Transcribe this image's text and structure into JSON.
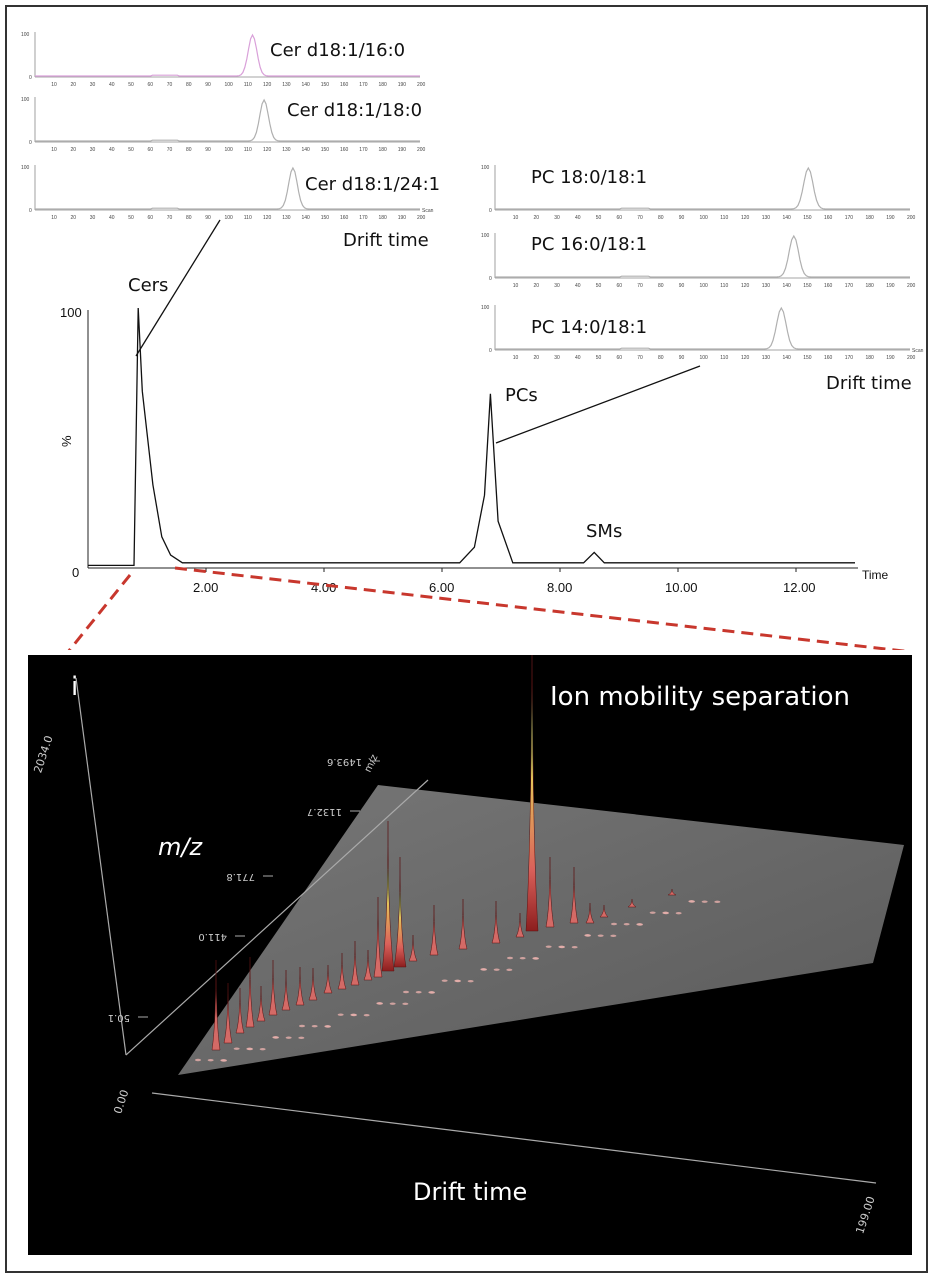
{
  "inset_cer": {
    "traces": [
      {
        "label": "Cer d18:1/16:0",
        "peak": 113,
        "color": "#d9a0d9"
      },
      {
        "label": "Cer d18:1/18:0",
        "peak": 119,
        "color": "#b0b0b0"
      },
      {
        "label": "Cer d18:1/24:1",
        "peak": 134,
        "color": "#b0b0b0"
      }
    ],
    "xticks": [
      10,
      20,
      30,
      40,
      50,
      60,
      70,
      80,
      90,
      100,
      110,
      120,
      130,
      140,
      150,
      160,
      170,
      180,
      190,
      200
    ],
    "yticks": [
      0,
      100
    ],
    "x_unit": "Scan",
    "xlabel": "Drift time"
  },
  "inset_pc": {
    "traces": [
      {
        "label": "PC 18:0/18:1",
        "peak": 151,
        "color": "#b0b0b0"
      },
      {
        "label": "PC 16:0/18:1",
        "peak": 144,
        "color": "#b0b0b0"
      },
      {
        "label": "PC 14:0/18:1",
        "peak": 138,
        "color": "#b0b0b0"
      }
    ],
    "xticks": [
      10,
      20,
      30,
      40,
      50,
      60,
      70,
      80,
      90,
      100,
      110,
      120,
      130,
      140,
      150,
      160,
      170,
      180,
      190,
      200
    ],
    "yticks": [
      0,
      100
    ],
    "x_unit": "Scan",
    "xlabel": "Drift time"
  },
  "chromatogram": {
    "xticks": [
      "2.00",
      "4.00",
      "6.00",
      "8.00",
      "10.00",
      "12.00"
    ],
    "xlabel": "Time",
    "ylabel": "%",
    "yticks": [
      "0",
      "100"
    ],
    "annotations": {
      "cers": "Cers",
      "pcs": "PCs",
      "sms": "SMs"
    }
  },
  "chart_data": [
    {
      "type": "line",
      "title": "",
      "xlabel": "Time",
      "ylabel": "%",
      "xlim": [
        0,
        13
      ],
      "ylim": [
        0,
        100
      ],
      "x": [
        0.0,
        0.78,
        0.85,
        0.92,
        1.0,
        1.1,
        1.25,
        1.4,
        1.6,
        2.05,
        3.8,
        6.3,
        6.55,
        6.72,
        6.82,
        6.95,
        7.2,
        8.4,
        8.58,
        8.75,
        13.0
      ],
      "series": [
        {
          "values": [
            1,
            1,
            100,
            68,
            52,
            32,
            12,
            5,
            2,
            2,
            2,
            2,
            8,
            28,
            67,
            18,
            2,
            2,
            6,
            2,
            2
          ]
        }
      ]
    },
    {
      "type": "surface",
      "title": "Ion mobility separation",
      "xlabel": "Drift time",
      "ylabel": "m/z",
      "zlabel": "i",
      "m_z_ticks": [
        "50.1",
        "411.0",
        "771.8",
        "1132.7",
        "1493.6"
      ],
      "drift_ticks": [
        "0.00",
        "199.00"
      ],
      "intensity_max": "2034.0"
    }
  ]
}
